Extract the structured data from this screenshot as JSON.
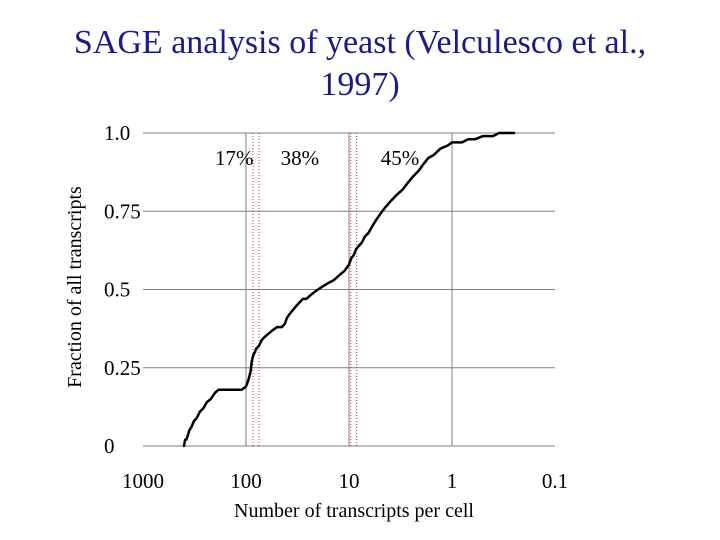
{
  "title_line1": "SAGE analysis of yeast (Velculesco et al.,",
  "title_line2": "1997)",
  "colors": {
    "title": "#1a1a8c",
    "grid": "#808080",
    "marker": "#c0392b",
    "curve": "#000000"
  },
  "chart_data": {
    "type": "line",
    "title": "SAGE analysis of yeast (Velculesco et al., 1997)",
    "xlabel": "Number of transcripts per cell",
    "ylabel": "Fraction of all transcripts",
    "x_scale": "log",
    "x_reversed": true,
    "xlim": [
      1000,
      0.1
    ],
    "ylim": [
      0,
      1.0
    ],
    "x_ticks": [
      {
        "value": 1000,
        "label": "1000"
      },
      {
        "value": 100,
        "label": "100"
      },
      {
        "value": 10,
        "label": "10"
      },
      {
        "value": 1,
        "label": "1"
      },
      {
        "value": 0.1,
        "label": "0.1"
      }
    ],
    "y_ticks": [
      {
        "value": 1.0,
        "label": "1.0"
      },
      {
        "value": 0.75,
        "label": "0.75"
      },
      {
        "value": 0.5,
        "label": "0.5"
      },
      {
        "value": 0.25,
        "label": "0.25"
      },
      {
        "value": 0,
        "label": "0"
      }
    ],
    "grid": true,
    "region_markers": [
      80,
      9
    ],
    "region_labels": [
      {
        "label": "17%",
        "x": 130
      },
      {
        "label": "38%",
        "x": 30
      },
      {
        "label": "45%",
        "x": 3.2
      }
    ],
    "series": [
      {
        "x": [
          400,
          390,
          380,
          370,
          355,
          340,
          320,
          300,
          280,
          260,
          240,
          220,
          200,
          185,
          170,
          160,
          150,
          140,
          125,
          110,
          100,
          95,
          90,
          88,
          85,
          82,
          80,
          75,
          70,
          65,
          60,
          55,
          50,
          45,
          42,
          40,
          38,
          36,
          34,
          32,
          30,
          28,
          26,
          24,
          22,
          20,
          18,
          16,
          14,
          13,
          12,
          11,
          10,
          9.5,
          9,
          8.5,
          8,
          7.5,
          7,
          6.5,
          6,
          5.5,
          5,
          4.5,
          4,
          3.5,
          3,
          2.7,
          2.4,
          2.1,
          1.9,
          1.7,
          1.5,
          1.3,
          1.1,
          1.0,
          0.9,
          0.8,
          0.7,
          0.6,
          0.5,
          0.4,
          0.35,
          0.3,
          0.25
        ],
        "y": [
          0.0,
          0.02,
          0.02,
          0.03,
          0.05,
          0.06,
          0.08,
          0.09,
          0.11,
          0.12,
          0.14,
          0.15,
          0.17,
          0.18,
          0.18,
          0.18,
          0.18,
          0.18,
          0.18,
          0.18,
          0.19,
          0.21,
          0.24,
          0.27,
          0.29,
          0.3,
          0.31,
          0.32,
          0.34,
          0.35,
          0.36,
          0.37,
          0.38,
          0.38,
          0.39,
          0.41,
          0.42,
          0.43,
          0.44,
          0.45,
          0.46,
          0.47,
          0.47,
          0.48,
          0.49,
          0.5,
          0.51,
          0.52,
          0.53,
          0.54,
          0.55,
          0.56,
          0.58,
          0.6,
          0.61,
          0.63,
          0.64,
          0.65,
          0.67,
          0.68,
          0.7,
          0.72,
          0.74,
          0.76,
          0.78,
          0.8,
          0.82,
          0.84,
          0.86,
          0.88,
          0.9,
          0.92,
          0.93,
          0.95,
          0.96,
          0.97,
          0.97,
          0.97,
          0.98,
          0.98,
          0.99,
          0.99,
          1.0,
          1.0,
          1.0
        ]
      }
    ]
  }
}
